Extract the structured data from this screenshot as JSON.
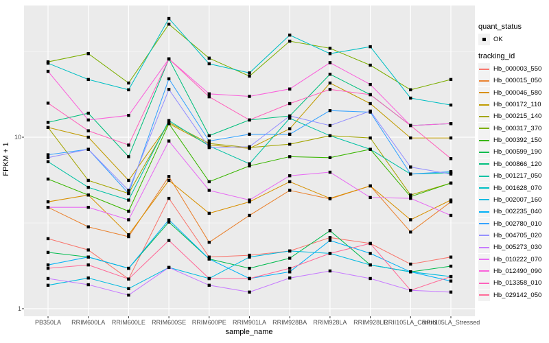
{
  "legend": {
    "quant_title": "quant_status",
    "quant_items": [
      {
        "label": "OK",
        "marker": "black-square-point"
      }
    ],
    "tracking_title": "tracking_id"
  },
  "theme": {
    "panel_bg": "#EBEBEB",
    "grid_color": "#FFFFFF",
    "point_color": "#000000",
    "tick_text_color": "#4D4D4D",
    "axis_tick_color": "#333333"
  },
  "chart_data": {
    "type": "line",
    "title": "",
    "xlabel": "sample_name",
    "ylabel": "FPKM + 1",
    "y_scale": "log10",
    "ylim": [
      0.9,
      58
    ],
    "grid": true,
    "legend_position": "right",
    "y_ticks": [
      {
        "label": "10",
        "value": 10
      },
      {
        "label": "1",
        "value": 1
      }
    ],
    "y_minor_ticks": [
      3.1623,
      31.623
    ],
    "categories": [
      "PB350LA",
      "RRIM600LA",
      "RRIM600LE",
      "RRIM600SE",
      "RRIM600PE",
      "RRIM901LA",
      "RRIM928BA",
      "RRIM928LA",
      "RRIM928LE",
      "RRII105LA_Control",
      "RRII105LA_Stressed"
    ],
    "series": [
      {
        "name": "Hb_000003_550",
        "color": "#F8766D",
        "values": [
          2.56,
          2.2,
          1.49,
          4.4,
          2.0,
          2.05,
          2.17,
          2.6,
          2.4,
          1.82,
          2.0
        ]
      },
      {
        "name": "Hb_000015_050",
        "color": "#EA8331",
        "values": [
          3.9,
          3.0,
          2.63,
          5.9,
          2.44,
          3.5,
          4.9,
          4.37,
          5.2,
          2.8,
          4.2
        ]
      },
      {
        "name": "Hb_000046_580",
        "color": "#D89000",
        "values": [
          4.2,
          4.6,
          2.7,
          5.6,
          3.6,
          4.2,
          5.5,
          4.4,
          5.2,
          3.3,
          4.3
        ]
      },
      {
        "name": "Hb_000172_110",
        "color": "#C09B00",
        "values": [
          11.4,
          10.0,
          5.6,
          12.0,
          9.0,
          8.6,
          11.2,
          20.7,
          15.7,
          9.9,
          9.9
        ]
      },
      {
        "name": "Hb_000215_140",
        "color": "#A3A500",
        "values": [
          11.4,
          5.6,
          4.7,
          12.2,
          9.2,
          8.7,
          9.1,
          10.2,
          9.9,
          4.6,
          5.4
        ]
      },
      {
        "name": "Hb_000317_370",
        "color": "#7CAE00",
        "values": [
          27.5,
          30.7,
          20.7,
          45.6,
          28.9,
          22.7,
          36.3,
          33.0,
          26.3,
          18.9,
          21.7
        ]
      },
      {
        "name": "Hb_000392_150",
        "color": "#39B600",
        "values": [
          5.7,
          4.6,
          3.7,
          12.0,
          5.5,
          6.8,
          7.7,
          7.6,
          8.5,
          4.5,
          5.4
        ]
      },
      {
        "name": "Hb_000599_190",
        "color": "#00BB4E",
        "values": [
          2.13,
          2.0,
          1.72,
          3.2,
          1.95,
          1.72,
          1.97,
          2.85,
          1.8,
          1.64,
          1.77
        ]
      },
      {
        "name": "Hb_000866_120",
        "color": "#00BF7D",
        "values": [
          12.2,
          13.8,
          7.7,
          28.6,
          10.2,
          12.6,
          13.3,
          23.3,
          17.7,
          11.7,
          12.0
        ]
      },
      {
        "name": "Hb_001217_050",
        "color": "#00C1A3",
        "values": [
          7.2,
          5.1,
          4.3,
          12.5,
          8.9,
          7.0,
          12.9,
          10.2,
          8.5,
          6.1,
          6.2
        ]
      },
      {
        "name": "Hb_001628_070",
        "color": "#00BFC4",
        "values": [
          27.0,
          21.7,
          18.9,
          49.2,
          26.8,
          23.7,
          39.4,
          30.7,
          33.7,
          16.9,
          15.4
        ]
      },
      {
        "name": "Hb_002007_160",
        "color": "#00BAE0",
        "values": [
          1.37,
          1.51,
          1.31,
          1.74,
          1.5,
          2.0,
          2.17,
          2.1,
          1.8,
          1.64,
          1.54
        ]
      },
      {
        "name": "Hb_002235_040",
        "color": "#00B0F6",
        "values": [
          1.8,
          2.0,
          1.72,
          3.3,
          1.95,
          1.5,
          1.64,
          2.5,
          2.1,
          1.64,
          1.45
        ]
      },
      {
        "name": "Hb_002780_010",
        "color": "#35A2FF",
        "values": [
          7.9,
          8.5,
          4.7,
          21.9,
          9.5,
          10.4,
          10.4,
          14.3,
          14.0,
          6.1,
          6.3
        ]
      },
      {
        "name": "Hb_004705_020",
        "color": "#9590FF",
        "values": [
          7.6,
          8.5,
          4.9,
          19.0,
          8.7,
          8.8,
          13.3,
          11.7,
          14.2,
          6.7,
          6.1
        ]
      },
      {
        "name": "Hb_005273_030",
        "color": "#C77CFF",
        "values": [
          1.5,
          1.38,
          1.2,
          1.74,
          1.37,
          1.25,
          1.51,
          1.66,
          1.5,
          1.28,
          1.25
        ]
      },
      {
        "name": "Hb_010222_070",
        "color": "#E76BF3",
        "values": [
          3.9,
          3.9,
          3.3,
          9.5,
          4.9,
          4.3,
          5.96,
          6.25,
          4.45,
          4.4,
          3.5
        ]
      },
      {
        "name": "Hb_012490_090",
        "color": "#FA62DB",
        "values": [
          24.2,
          12.6,
          13.4,
          28.6,
          17.9,
          17.3,
          19.1,
          27.2,
          20.3,
          11.7,
          12.0
        ]
      },
      {
        "name": "Hb_013358_010",
        "color": "#FF62BC",
        "values": [
          15.8,
          10.9,
          9.0,
          28.6,
          17.2,
          12.6,
          15.7,
          19.0,
          17.7,
          11.7,
          7.5
        ]
      },
      {
        "name": "Hb_029142_050",
        "color": "#FF6A98",
        "values": [
          1.72,
          1.8,
          1.49,
          2.5,
          1.5,
          1.5,
          1.72,
          2.1,
          2.4,
          1.28,
          1.54
        ]
      }
    ]
  }
}
